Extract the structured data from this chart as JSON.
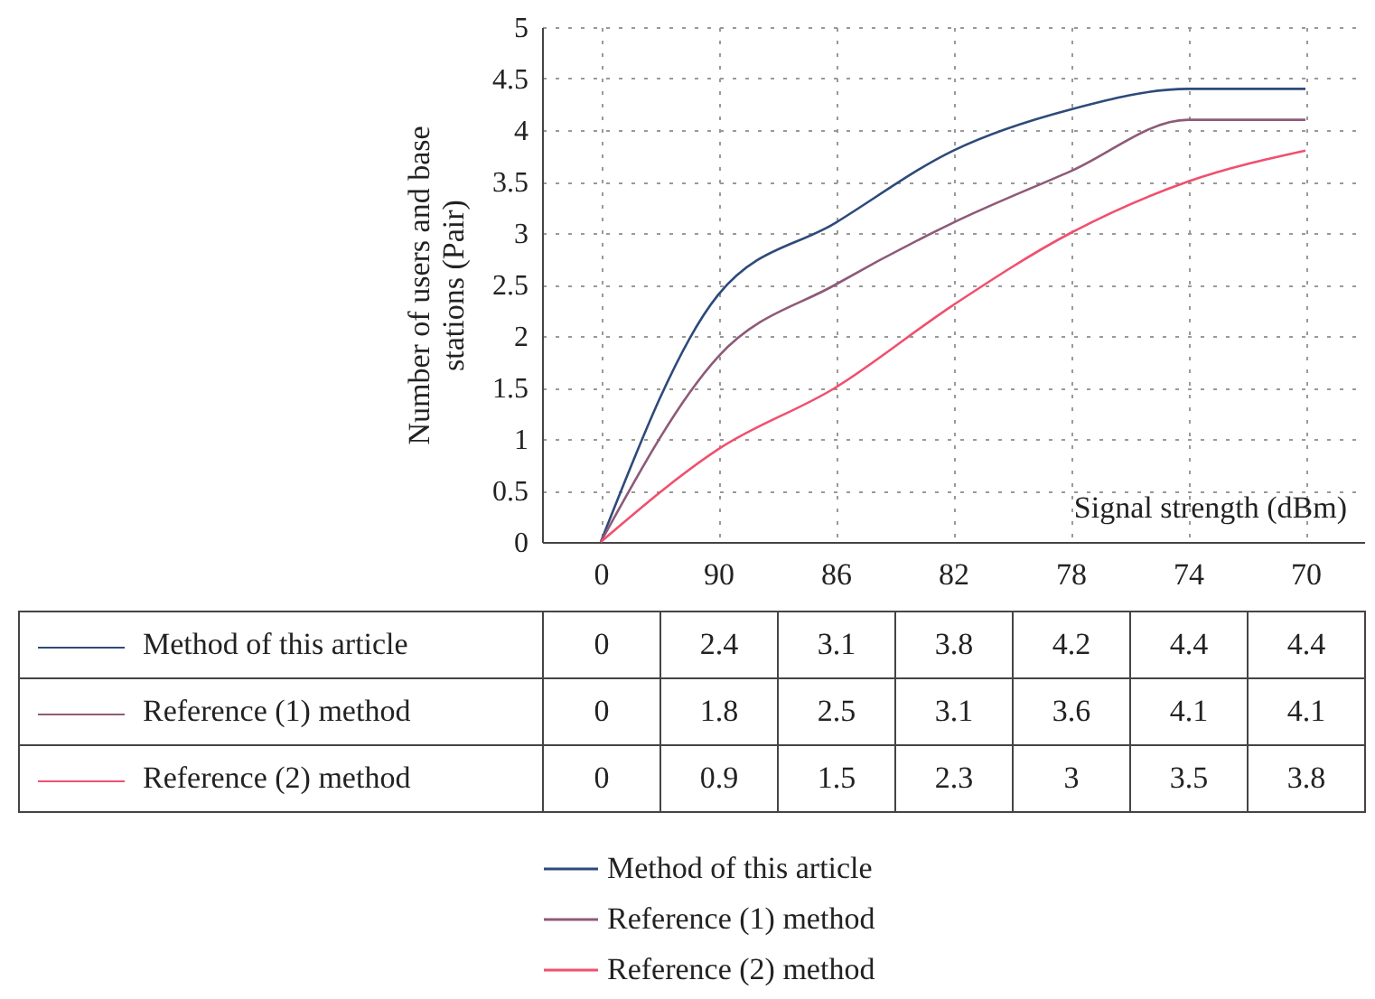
{
  "chart_data": {
    "type": "line",
    "xlabel": "Signal strength (dBm)",
    "ylabel": "Number of users and base stations (Pair)",
    "categories": [
      "0",
      "90",
      "86",
      "82",
      "78",
      "74",
      "70"
    ],
    "series": [
      {
        "name": "Method of this article",
        "color": "#2e4a7a",
        "values": [
          0,
          2.4,
          3.1,
          3.8,
          4.2,
          4.4,
          4.4
        ]
      },
      {
        "name": "Reference (1) method",
        "color": "#8e5a78",
        "values": [
          0,
          1.8,
          2.5,
          3.1,
          3.6,
          4.1,
          4.1
        ]
      },
      {
        "name": "Reference (2) method",
        "color": "#f0506e",
        "values": [
          0,
          0.9,
          1.5,
          2.3,
          3,
          3.5,
          3.8
        ]
      }
    ],
    "ylim": [
      0,
      5
    ],
    "yticks": [
      0,
      0.5,
      1,
      1.5,
      2,
      2.5,
      3,
      3.5,
      4,
      4.5,
      5
    ],
    "grid": true,
    "legend": "bottom",
    "data_labels": true,
    "line_style": "solid",
    "marker": "none"
  }
}
